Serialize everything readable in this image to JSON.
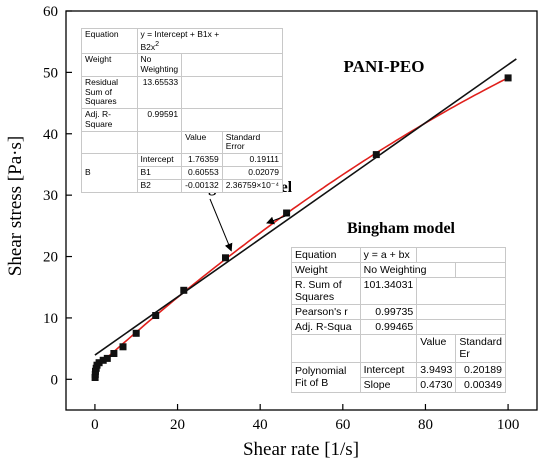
{
  "chart_data": {
    "type": "scatter",
    "title": "PANI-PEO",
    "xlabel": "Shear rate [1/s]",
    "ylabel": "Shear stress [Pa·s]",
    "xlim": [
      -7,
      107
    ],
    "ylim": [
      -5,
      60
    ],
    "xticks": [
      0,
      20,
      40,
      60,
      80,
      100
    ],
    "yticks": [
      0,
      10,
      20,
      30,
      40,
      50,
      60
    ],
    "grid": false,
    "series": [
      {
        "kind": "points",
        "marker": "square",
        "color": "#111111",
        "x": [
          0.05,
          0.1,
          0.15,
          0.3,
          0.5,
          1,
          2,
          3,
          4.6,
          6.8,
          10,
          14.7,
          21.5,
          31.6,
          46.4,
          68.1,
          100
        ],
        "y": [
          0.3,
          0.8,
          1.3,
          1.8,
          2.3,
          2.7,
          3.1,
          3.4,
          4.2,
          5.3,
          7.5,
          10.4,
          14.5,
          19.8,
          27.1,
          36.6,
          49.1
        ]
      },
      {
        "kind": "fit",
        "label": "Modified Bingham model",
        "color": "#e0201c",
        "equation": "quadratic",
        "intercept": 1.76359,
        "b1": 0.60553,
        "b2": -0.00132
      },
      {
        "kind": "fit",
        "label": "Bingham model",
        "color": "#111111",
        "equation": "linear",
        "intercept": 3.9493,
        "slope": 0.473
      }
    ],
    "annotations": [
      {
        "text": "Modified Bingham model",
        "arrow_to": "Modified Bingham model"
      },
      {
        "text": "Bingham model",
        "arrow_to": "Bingham model"
      }
    ]
  },
  "tables": {
    "quadratic": {
      "equation_label": "Equation",
      "equation_line1": "y = Intercept + B1x +",
      "equation_line2": "B2x",
      "equation_exp": "2",
      "weight_label": "Weight",
      "weight_value": "No Weighting",
      "rss_label": "Residual Sum of Squares",
      "rss_value": "13.65533",
      "adjr_label": "Adj. R-Square",
      "adjr_value": "0.99591",
      "col_value": "Value",
      "col_error": "Standard Error",
      "param_group": "B",
      "rows": [
        {
          "name": "Intercept",
          "value": "1.76359",
          "error": "0.19111"
        },
        {
          "name": "B1",
          "value": "0.60553",
          "error": "0.02079"
        },
        {
          "name": "B2",
          "value": "-0.00132",
          "error": "2.36759×10⁻⁴"
        }
      ]
    },
    "linear": {
      "equation_label": "Equation",
      "equation_value": "y = a + bx",
      "weight_label": "Weight",
      "weight_value": "No Weighting",
      "rss_label": "R. Sum of Squares",
      "rss_value": "101.34031",
      "pearson_label": "Pearson's r",
      "pearson_value": "0.99735",
      "adjr_label": "Adj. R-Squa",
      "adjr_value": "0.99465",
      "col_value": "Value",
      "col_error": "Standard Er",
      "param_group": "Polynomial Fit of  B",
      "rows": [
        {
          "name": "Intercept",
          "value": "3.9493",
          "error": "0.20189"
        },
        {
          "name": "Slope",
          "value": "0.4730",
          "error": "0.00349"
        }
      ]
    }
  }
}
